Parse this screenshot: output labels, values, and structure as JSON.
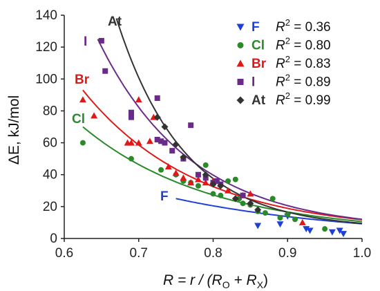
{
  "chart_data": {
    "type": "scatter",
    "xlabel": {
      "main": "R = r / (R",
      "sub1": "O",
      "mid": " + R",
      "sub2": "X",
      "end": ")"
    },
    "ylabel": "ΔE, kJ/mol",
    "xlim": [
      0.6,
      1.0
    ],
    "ylim": [
      0,
      140
    ],
    "xticks": [
      "0.6",
      "0.7",
      "0.8",
      "0.9",
      "1.0"
    ],
    "yticks": [
      "0",
      "20",
      "40",
      "60",
      "80",
      "100",
      "120",
      "140"
    ],
    "grid": false,
    "legend_position": "top-right",
    "series": [
      {
        "name": "F",
        "r2_label": "R",
        "r2_value": "= 0.36",
        "color": "#1f3fd6",
        "marker": "triangle-down",
        "curve_label": "F",
        "fit": {
          "x_start": 0.75,
          "x_end": 1.0,
          "a": 25,
          "b": 4,
          "x0": 0.75,
          "c": 0
        },
        "x": [
          0.86,
          0.89,
          0.9,
          0.925,
          0.93,
          0.96,
          0.97,
          0.975
        ],
        "y": [
          8,
          9,
          14,
          6,
          5,
          4,
          5,
          3
        ]
      },
      {
        "name": "Cl",
        "r2_label": "R",
        "r2_value": "= 0.80",
        "color": "#2a8a2a",
        "marker": "circle",
        "curve_label": "Cl",
        "fit": {
          "x_start": 0.625,
          "x_end": 1.0,
          "a": 70,
          "b": 5.8,
          "x0": 0.625,
          "c": 3
        },
        "x": [
          0.625,
          0.69,
          0.73,
          0.75,
          0.76,
          0.77,
          0.78,
          0.79,
          0.8,
          0.8,
          0.81,
          0.82,
          0.83,
          0.835,
          0.84,
          0.85,
          0.86,
          0.87,
          0.88,
          0.89,
          0.9,
          0.91,
          0.95
        ],
        "y": [
          60,
          50,
          43,
          40,
          36,
          35,
          33,
          46,
          34,
          28,
          27,
          36,
          37,
          25,
          22,
          21,
          17,
          16,
          25,
          13,
          15,
          12,
          6
        ]
      },
      {
        "name": "Br",
        "r2_label": "R",
        "r2_value": "= 0.83",
        "color": "#e01818",
        "marker": "triangle-up",
        "curve_label": "Br",
        "fit": {
          "x_start": 0.625,
          "x_end": 1.0,
          "a": 93,
          "b": 6.5,
          "x0": 0.625,
          "c": 4
        },
        "x": [
          0.625,
          0.64,
          0.685,
          0.69,
          0.7,
          0.7,
          0.715,
          0.72,
          0.74,
          0.75,
          0.76,
          0.77,
          0.78,
          0.79,
          0.8,
          0.82,
          0.84,
          0.85,
          0.92
        ],
        "y": [
          87,
          77,
          60,
          60,
          87,
          60,
          61,
          76,
          45,
          41,
          38,
          35,
          37,
          35,
          36,
          30,
          27,
          28,
          10
        ]
      },
      {
        "name": "I",
        "r2_label": "R",
        "r2_value": "= 0.89",
        "color": "#6a2a8a",
        "marker": "square",
        "curve_label": "I",
        "fit": {
          "x_start": 0.645,
          "x_end": 1.0,
          "a": 125,
          "b": 8,
          "x0": 0.645,
          "c": 5
        },
        "x": [
          0.65,
          0.655,
          0.69,
          0.69,
          0.725,
          0.725,
          0.73,
          0.735,
          0.745,
          0.76,
          0.77,
          0.78,
          0.79,
          0.8,
          0.805,
          0.81,
          0.84
        ],
        "y": [
          124,
          105,
          79,
          76,
          88,
          62,
          61,
          60,
          55,
          50,
          71,
          40,
          38,
          35,
          36,
          34,
          27
        ]
      },
      {
        "name": "At",
        "r2_label": "R",
        "r2_value": "= 0.99",
        "color": "#333333",
        "marker": "diamond",
        "curve_label": "At",
        "fit": {
          "x_start": 0.67,
          "x_end": 1.0,
          "a": 138,
          "b": 11,
          "x0": 0.67,
          "c": 6
        },
        "x": [
          0.725,
          0.735,
          0.75,
          0.76,
          0.79,
          0.8,
          0.81,
          0.83,
          0.85,
          0.86
        ],
        "y": [
          76,
          70,
          59,
          51,
          40,
          34,
          33,
          25,
          22,
          18
        ]
      }
    ]
  }
}
